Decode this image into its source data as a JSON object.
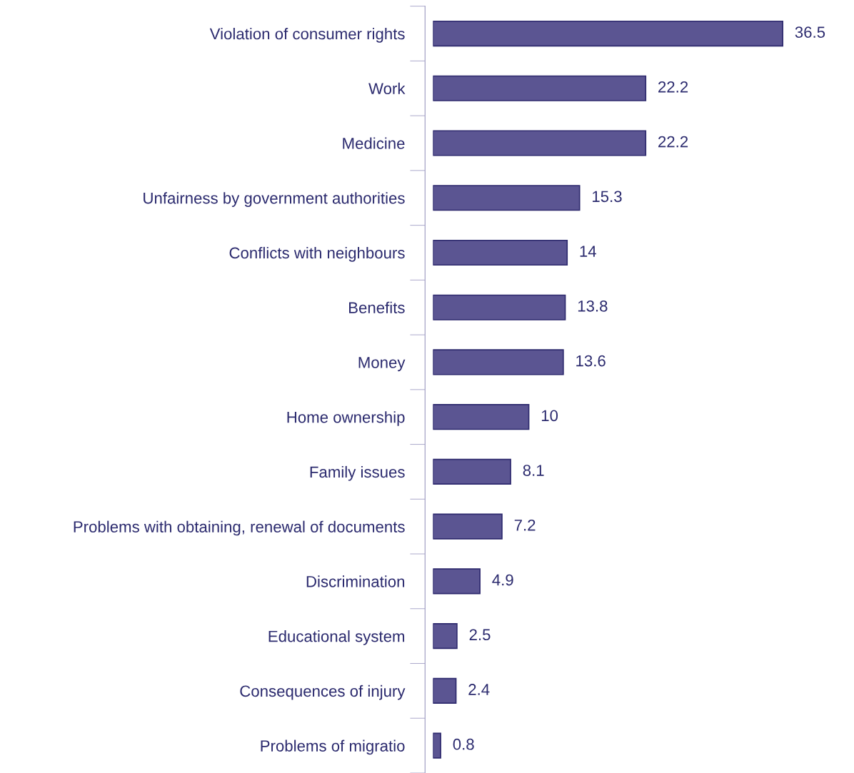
{
  "chart_data": {
    "type": "bar",
    "orientation": "horizontal",
    "data_labels": true,
    "grid": false,
    "legend": false,
    "categories": [
      "Violation of consumer rights",
      "Work",
      "Medicine",
      "Unfairness by government authorities",
      "Conflicts with neighbours",
      "Benefits",
      "Money",
      "Home ownership",
      "Family issues",
      "Problems with obtaining, renewal of documents",
      "Discrimination",
      "Educational system",
      "Consequences of injury",
      "Problems of migratio"
    ],
    "values": [
      36.5,
      22.2,
      22.2,
      15.3,
      14,
      13.8,
      13.6,
      10,
      8.1,
      7.2,
      4.9,
      2.5,
      2.4,
      0.8
    ],
    "color": "#5b5592"
  }
}
